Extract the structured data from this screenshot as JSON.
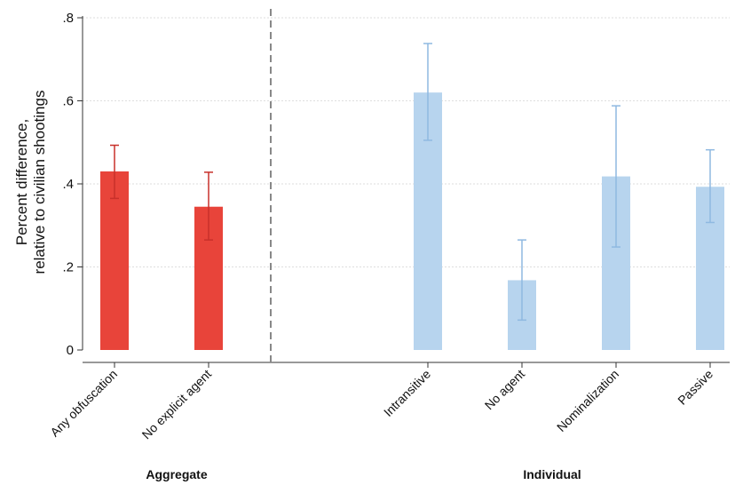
{
  "chart_data": {
    "type": "bar",
    "ylabel_lines": [
      "Percent difference,",
      "relative to civilian shootings"
    ],
    "ylim": [
      0,
      0.8
    ],
    "yticks": [
      {
        "value": 0,
        "label": "0"
      },
      {
        "value": 0.2,
        "label": ".2"
      },
      {
        "value": 0.4,
        "label": ".4"
      },
      {
        "value": 0.6,
        "label": ".6"
      },
      {
        "value": 0.8,
        "label": ".8"
      }
    ],
    "grid": true,
    "groups": [
      {
        "name": "Aggregate",
        "color": "#e8443a",
        "error_color": "#c8302a"
      },
      {
        "name": "Individual",
        "color": "#b7d4ee",
        "error_color": "#8fb9e1"
      }
    ],
    "bars": [
      {
        "category": "Any obfuscation",
        "group": "Aggregate",
        "value": 0.43,
        "ci": [
          0.365,
          0.493
        ]
      },
      {
        "category": "No explicit agent",
        "group": "Aggregate",
        "value": 0.345,
        "ci": [
          0.265,
          0.428
        ]
      },
      {
        "category": "Intransitive",
        "group": "Individual",
        "value": 0.62,
        "ci": [
          0.505,
          0.738
        ]
      },
      {
        "category": "No agent",
        "group": "Individual",
        "value": 0.168,
        "ci": [
          0.072,
          0.265
        ]
      },
      {
        "category": "Nominalization",
        "group": "Individual",
        "value": 0.418,
        "ci": [
          0.248,
          0.588
        ]
      },
      {
        "category": "Passive",
        "group": "Individual",
        "value": 0.393,
        "ci": [
          0.307,
          0.482
        ]
      }
    ]
  }
}
